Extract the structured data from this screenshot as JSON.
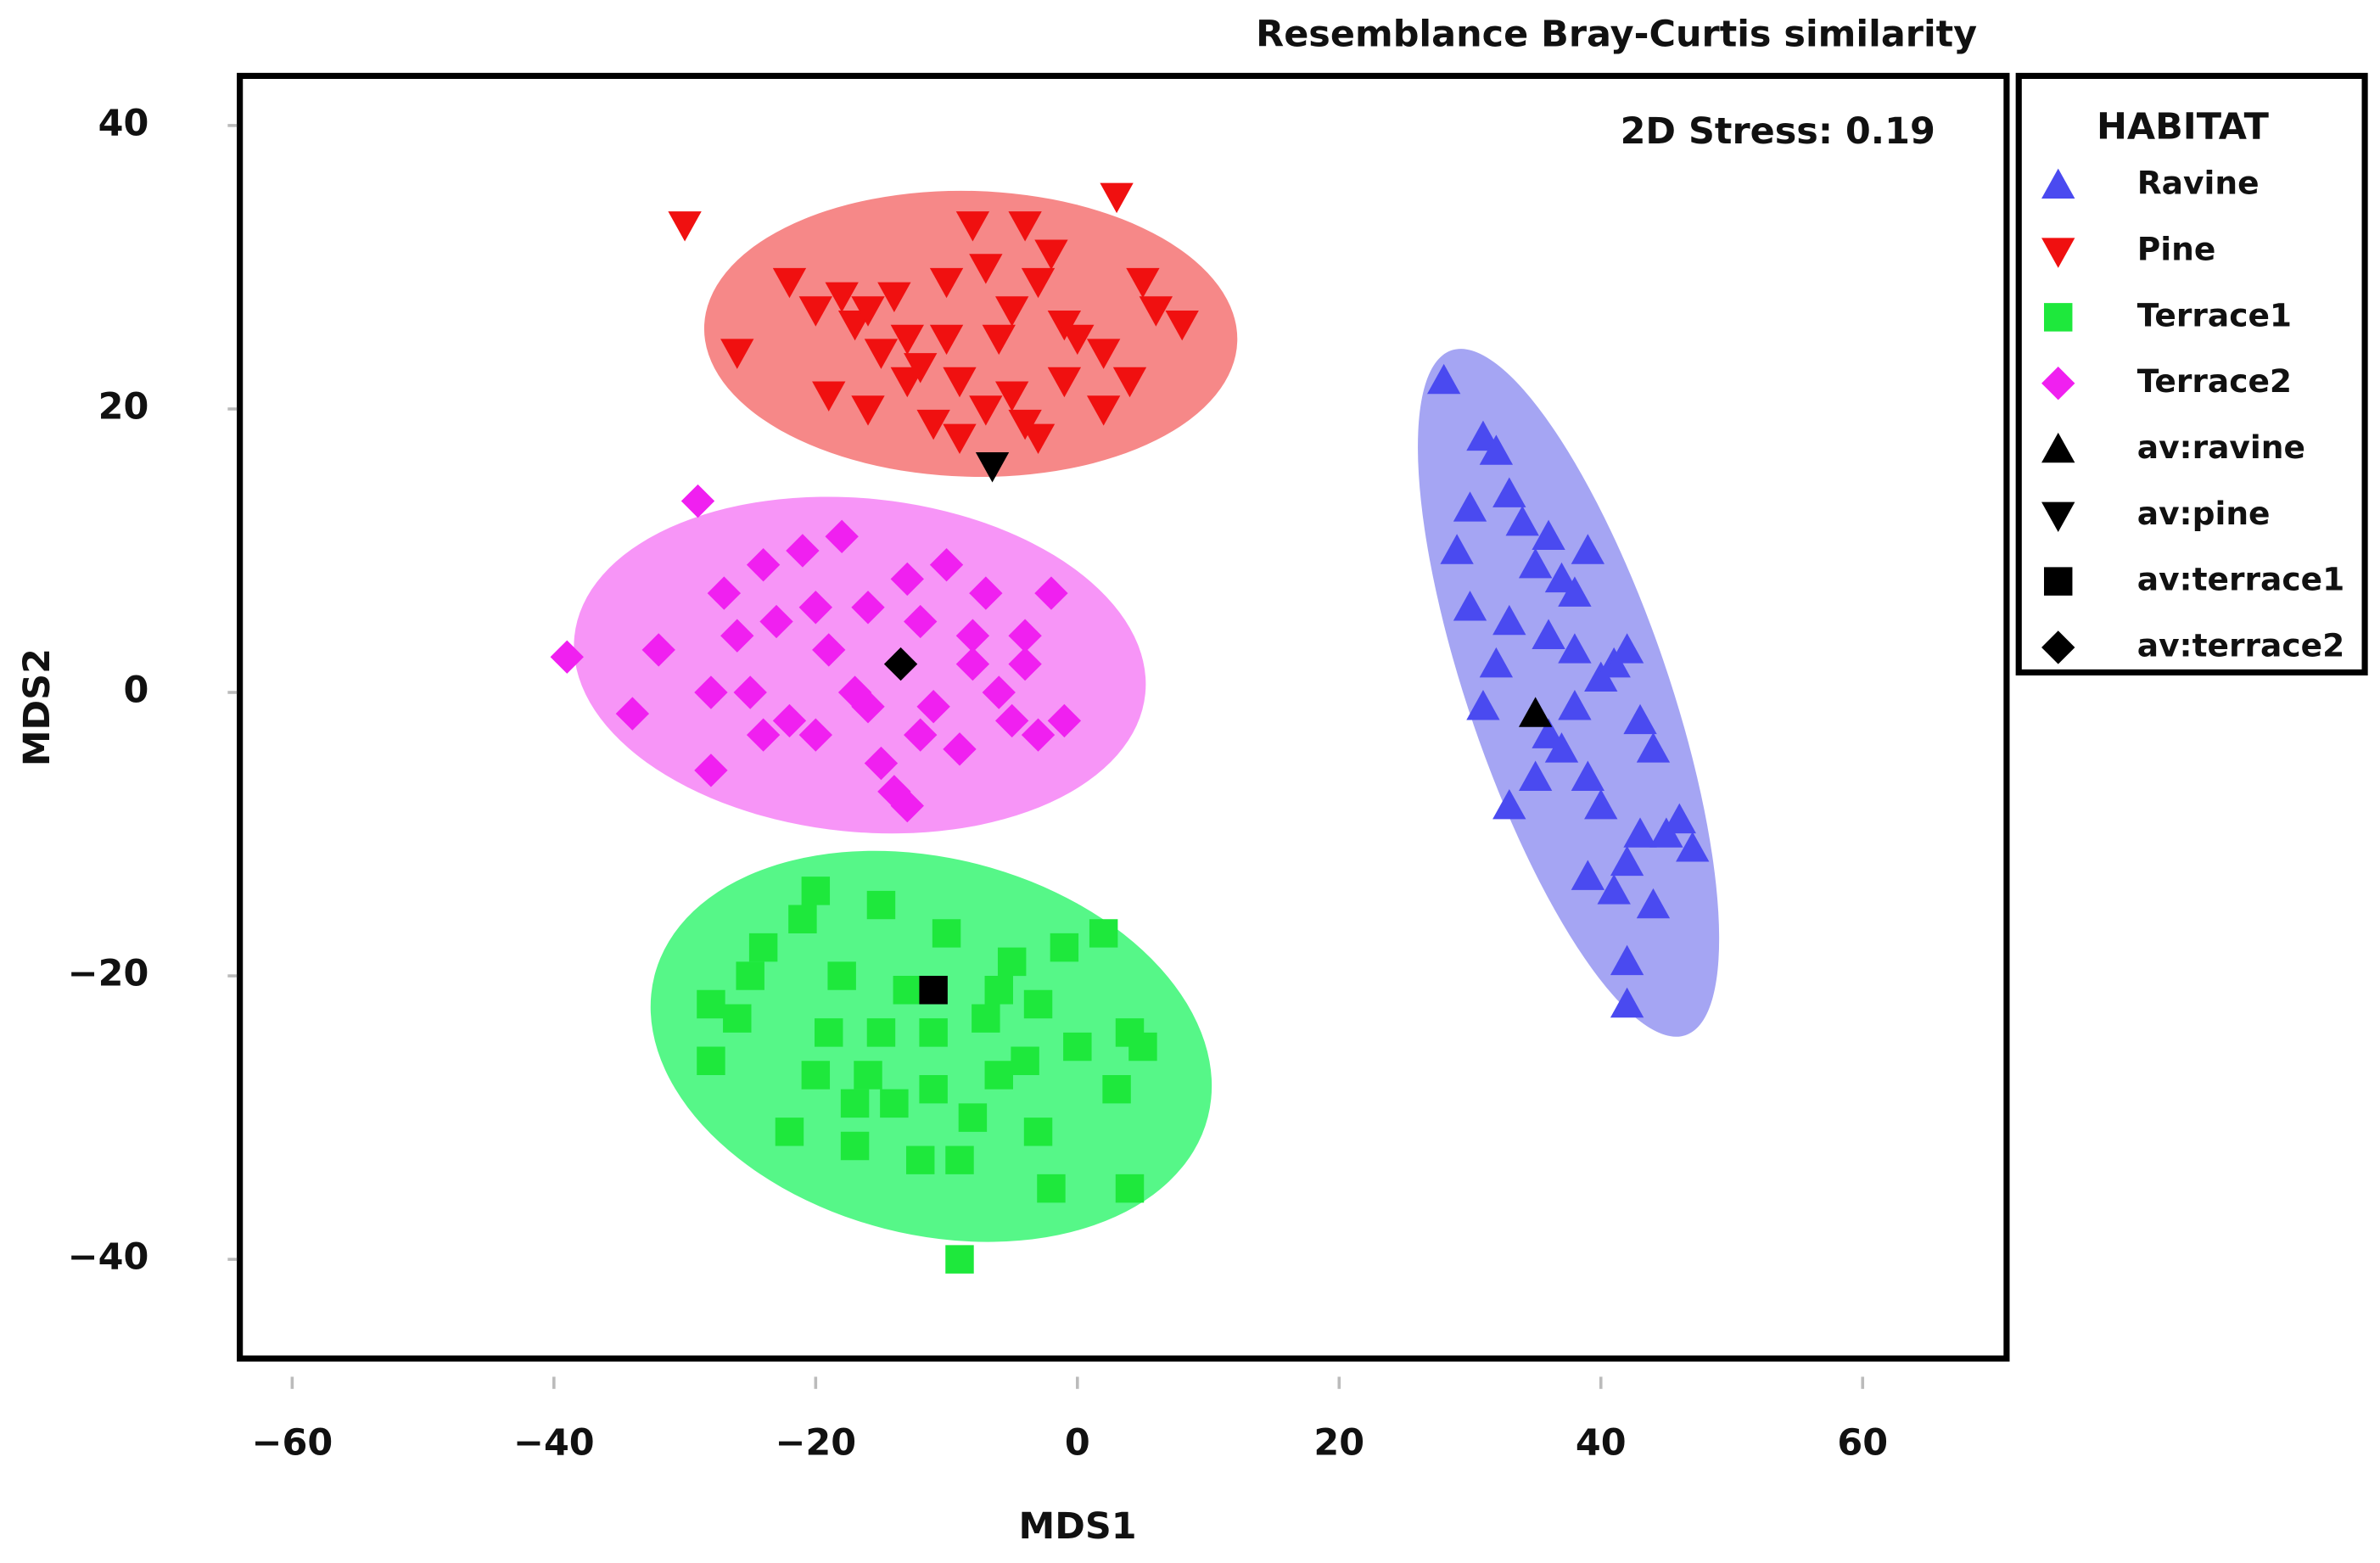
{
  "chart_data": {
    "type": "scatter",
    "title": "Resemblance Bray-Curtis similarity",
    "annotation": "2D Stress: 0.19",
    "xlabel": "MDS1",
    "ylabel": "MDS2",
    "legend_title": "HABITAT",
    "legend_title_color": "#3a6fc4",
    "legend": "outside-right",
    "xlim": [
      -64,
      71
    ],
    "ylim": [
      -47,
      43.5
    ],
    "xticks": [
      {
        "value": -60,
        "label": "−60"
      },
      {
        "value": -40,
        "label": "−40"
      },
      {
        "value": -20,
        "label": "−20"
      },
      0,
      20,
      40,
      60
    ],
    "yticks": [
      {
        "value": -40,
        "label": "−40"
      },
      {
        "value": -20,
        "label": "−20"
      },
      0,
      20,
      40
    ],
    "series": [
      {
        "name": "Ravine",
        "color": "#4a4af0",
        "ellipse_color": "#8f8ff0",
        "marker": "triangle-up",
        "x": [
          28,
          31,
          32,
          33,
          30,
          29,
          34,
          35,
          36,
          37,
          38,
          39,
          33,
          32,
          31,
          36,
          38,
          40,
          41,
          42,
          43,
          44,
          45,
          46,
          47,
          37,
          39,
          40,
          42,
          43,
          41,
          33,
          35,
          36,
          38,
          39,
          42,
          42,
          44,
          30
        ],
        "y": [
          22,
          18,
          17,
          14,
          13,
          10,
          12,
          9,
          11,
          8,
          7,
          10,
          5,
          2,
          -1,
          4,
          3,
          1,
          2,
          3,
          -2,
          -4,
          -10,
          -9,
          -11,
          -4,
          -6,
          -8,
          -12,
          -10,
          -14,
          -8,
          -6,
          -3,
          -1,
          -13,
          -19,
          -22,
          -15,
          6
        ]
      },
      {
        "name": "Pine",
        "color": "#f01010",
        "ellipse_color": "#f46a6a",
        "marker": "triangle-down",
        "x": [
          -30,
          -26,
          -22,
          -20,
          -18,
          -17,
          -16,
          -15,
          -14,
          -13,
          -12,
          -10,
          -9,
          -8,
          -7,
          -6,
          -5,
          -4,
          -3,
          -2,
          -1,
          0,
          2,
          3,
          4,
          5,
          6,
          8,
          -19,
          -16,
          -13,
          -11,
          -9,
          -7,
          -5,
          -3,
          -1,
          -10,
          -4,
          2
        ],
        "y": [
          33,
          24,
          29,
          27,
          28,
          26,
          27,
          24,
          28,
          25,
          23,
          29,
          22,
          33,
          30,
          25,
          27,
          33,
          29,
          31,
          26,
          25,
          24,
          35,
          22,
          29,
          27,
          26,
          21,
          20,
          22,
          19,
          18,
          20,
          21,
          18,
          22,
          25,
          19,
          20
        ]
      },
      {
        "name": "Terrace1",
        "color": "#1ee83c",
        "ellipse_color": "#2cf56a",
        "marker": "square",
        "x": [
          -28,
          -28,
          -26,
          -24,
          -22,
          -21,
          -20,
          -19,
          -18,
          -17,
          -16,
          -15,
          -14,
          -13,
          -12,
          -11,
          -10,
          -9,
          -8,
          -7,
          -6,
          -5,
          -4,
          -3,
          -2,
          -1,
          0,
          2,
          3,
          4,
          4,
          5,
          -9,
          -15,
          -20,
          -25,
          -17,
          -11,
          -6,
          -3
        ],
        "y": [
          -22,
          -26,
          -23,
          -18,
          -31,
          -16,
          -14,
          -24,
          -20,
          -32,
          -27,
          -15,
          -29,
          -21,
          -33,
          -24,
          -17,
          -40,
          -30,
          -23,
          -27,
          -19,
          -26,
          -22,
          -35,
          -18,
          -25,
          -17,
          -28,
          -35,
          -24,
          -25,
          -33,
          -24,
          -27,
          -20,
          -29,
          -28,
          -21,
          -31
        ]
      },
      {
        "name": "Terrace2",
        "color": "#f020f0",
        "ellipse_color": "#f57af5",
        "marker": "diamond",
        "x": [
          -39,
          -34,
          -32,
          -29,
          -28,
          -27,
          -26,
          -25,
          -24,
          -23,
          -22,
          -21,
          -20,
          -19,
          -18,
          -17,
          -16,
          -15,
          -14,
          -13,
          -12,
          -11,
          -10,
          -9,
          -8,
          -7,
          -6,
          -5,
          -4,
          -3,
          -2,
          -1,
          -28,
          -24,
          -20,
          -16,
          -12,
          -8,
          -4,
          -13
        ],
        "y": [
          2.5,
          -1.5,
          3,
          13.5,
          -5.5,
          7,
          4,
          0,
          9,
          5,
          -2,
          10,
          -3,
          3,
          11,
          0,
          6,
          -5,
          -7,
          8,
          5,
          -1,
          9,
          -4,
          4,
          7,
          0,
          -2,
          2,
          -3,
          7,
          -2,
          0,
          -3,
          6,
          -1,
          -3,
          2,
          4,
          -8
        ]
      },
      {
        "name": "av:ravine",
        "color": "#000000",
        "marker": "triangle-up",
        "x": [
          35
        ],
        "y": [
          -1.5
        ]
      },
      {
        "name": "av:pine",
        "color": "#000000",
        "marker": "triangle-down",
        "x": [
          -6.5
        ],
        "y": [
          16
        ]
      },
      {
        "name": "av:terrace1",
        "color": "#000000",
        "marker": "square",
        "x": [
          -11
        ],
        "y": [
          -21
        ]
      },
      {
        "name": "av:terrace2",
        "color": "#000000",
        "marker": "diamond",
        "x": [
          -13.5
        ],
        "y": [
          2
        ]
      }
    ]
  }
}
